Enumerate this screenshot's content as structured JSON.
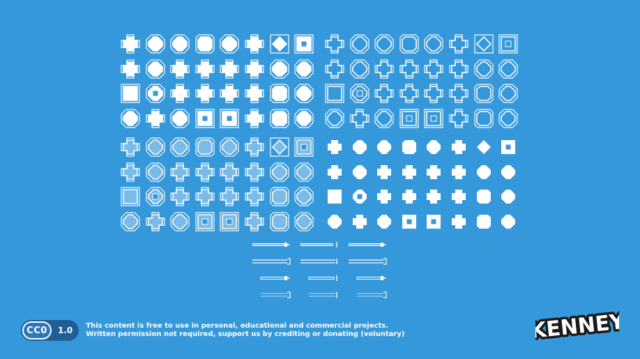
{
  "sheet": {
    "background": "#3498db",
    "solid_color": "#ffffff",
    "transparent_fill": "rgba(255,255,255,0.35)",
    "quadrants": [
      {
        "id": "outline-filled",
        "style": "outline-fill"
      },
      {
        "id": "outline-empty",
        "style": "outline"
      },
      {
        "id": "outline-transparent",
        "style": "outline-transparent"
      },
      {
        "id": "solid",
        "style": "solid"
      }
    ],
    "tile_shapes": [
      [
        "cross",
        "circle",
        "octagon",
        "chamfer",
        "octagon",
        "cross",
        "diamond-cross",
        "inset-square"
      ],
      [
        "notch",
        "octagon",
        "cross",
        "cross-notch",
        "cross",
        "notch",
        "octagon-notch",
        "octagon"
      ],
      [
        "square",
        "octagon-inset",
        "cross",
        "cross",
        "cross",
        "notch",
        "chamfer",
        "octagon"
      ],
      [
        "octagon",
        "notch",
        "octagon",
        "square-inset",
        "inset-square",
        "cross-notch",
        "chamfer",
        "octagon-notch"
      ]
    ],
    "dividers": [
      {
        "style": "bar-cross"
      },
      {
        "style": "bar-cap"
      },
      {
        "style": "bar-cross"
      },
      {
        "style": "double-bracket"
      },
      {
        "style": "double-cap"
      },
      {
        "style": "double-bracket"
      },
      {
        "style": "fade-cross"
      },
      {
        "style": "fade-cap"
      },
      {
        "style": "fade-cross"
      },
      {
        "style": "fade-double-bracket"
      },
      {
        "style": "fade-double-cap"
      },
      {
        "style": "fade-double-bracket"
      }
    ]
  },
  "license": {
    "cc_label": "CC0",
    "version": "1.0",
    "line1": "This content is free to use in personal, educational and commercial projects.",
    "line2": "Written permission not required, support us by crediting or donating (voluntary)"
  },
  "logo": {
    "text": "KENNEY",
    "fill": "#ffffff",
    "outline": "#1a1a1a"
  }
}
